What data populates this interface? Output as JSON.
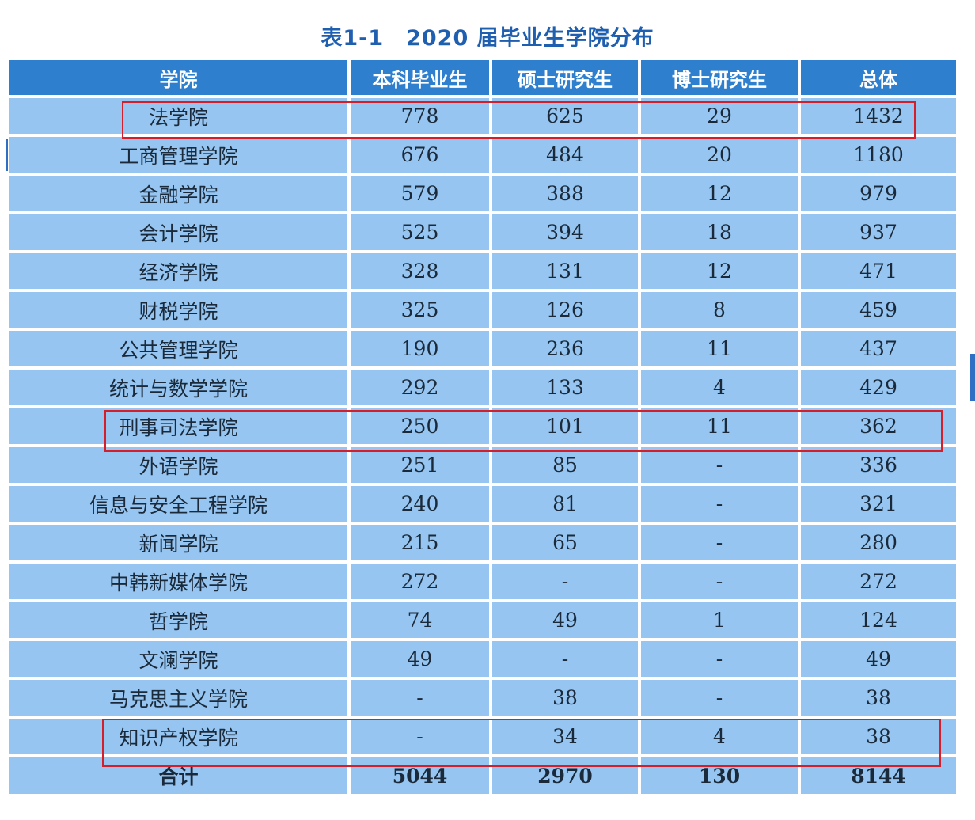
{
  "title": {
    "label": "表1-1",
    "text": "2020 届毕业生学院分布"
  },
  "columns": [
    "学院",
    "本科毕业生",
    "硕士研究生",
    "博士研究生",
    "总体"
  ],
  "rows": [
    [
      "法学院",
      "778",
      "625",
      "29",
      "1432"
    ],
    [
      "工商管理学院",
      "676",
      "484",
      "20",
      "1180"
    ],
    [
      "金融学院",
      "579",
      "388",
      "12",
      "979"
    ],
    [
      "会计学院",
      "525",
      "394",
      "18",
      "937"
    ],
    [
      "经济学院",
      "328",
      "131",
      "12",
      "471"
    ],
    [
      "财税学院",
      "325",
      "126",
      "8",
      "459"
    ],
    [
      "公共管理学院",
      "190",
      "236",
      "11",
      "437"
    ],
    [
      "统计与数学学院",
      "292",
      "133",
      "4",
      "429"
    ],
    [
      "刑事司法学院",
      "250",
      "101",
      "11",
      "362"
    ],
    [
      "外语学院",
      "251",
      "85",
      "-",
      "336"
    ],
    [
      "信息与安全工程学院",
      "240",
      "81",
      "-",
      "321"
    ],
    [
      "新闻学院",
      "215",
      "65",
      "-",
      "280"
    ],
    [
      "中韩新媒体学院",
      "272",
      "-",
      "-",
      "272"
    ],
    [
      "哲学院",
      "74",
      "49",
      "1",
      "124"
    ],
    [
      "文澜学院",
      "49",
      "-",
      "-",
      "49"
    ],
    [
      "马克思主义学院",
      "-",
      "38",
      "-",
      "38"
    ],
    [
      "知识产权学院",
      "-",
      "34",
      "4",
      "38"
    ]
  ],
  "total": [
    "合计",
    "5044",
    "2970",
    "130",
    "8144"
  ],
  "highlighted_rows": [
    "法学院",
    "刑事司法学院",
    "知识产权学院"
  ],
  "colors": {
    "header_bg": "#2f7fcf",
    "cell_bg": "#95c5f0",
    "title": "#1f5fb0",
    "highlight": "#d41e2a"
  }
}
